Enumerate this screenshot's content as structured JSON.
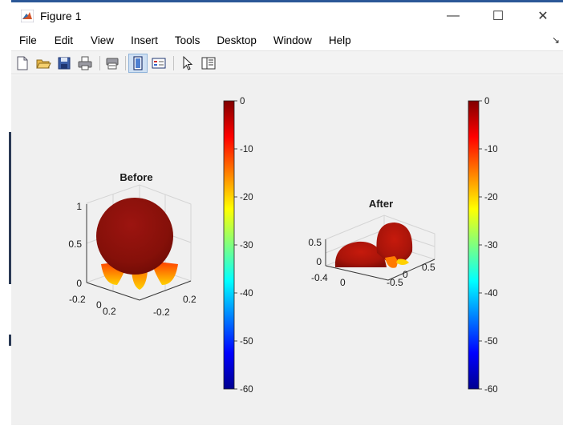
{
  "window": {
    "title": "Figure 1",
    "controls": {
      "minimize": "—",
      "maximize": "☐",
      "close": "✕"
    }
  },
  "menu": {
    "items": [
      "File",
      "Edit",
      "View",
      "Insert",
      "Tools",
      "Desktop",
      "Window",
      "Help"
    ],
    "overflow": "↘"
  },
  "toolbar": {
    "items": [
      "new-figure-icon",
      "open-file-icon",
      "save-icon",
      "print-icon",
      "print-preview-icon",
      "colorbar-icon",
      "legend-icon",
      "pointer-icon",
      "property-editor-icon"
    ]
  },
  "chart_data": [
    {
      "type": "3d-surface",
      "title": "Before",
      "x_ticks": [
        "-0.2",
        "0",
        "0.2"
      ],
      "y_ticks": [
        "0.2",
        "-0.2"
      ],
      "z_ticks": [
        "0",
        "0.5",
        "1"
      ],
      "colorbar": {
        "ticks": [
          "0",
          "-10",
          "-20",
          "-30",
          "-40",
          "-50",
          "-60"
        ],
        "range": [
          -60,
          0
        ],
        "colormap": "jet"
      }
    },
    {
      "type": "3d-surface",
      "title": "After",
      "x_ticks": [
        "-0.4",
        "0"
      ],
      "y_ticks": [
        "-0.5",
        "0",
        "0.5"
      ],
      "z_ticks": [
        "0",
        "0.5"
      ],
      "colorbar": {
        "ticks": [
          "0",
          "-10",
          "-20",
          "-30",
          "-40",
          "-50",
          "-60"
        ],
        "range": [
          -60,
          0
        ],
        "colormap": "jet"
      }
    }
  ]
}
